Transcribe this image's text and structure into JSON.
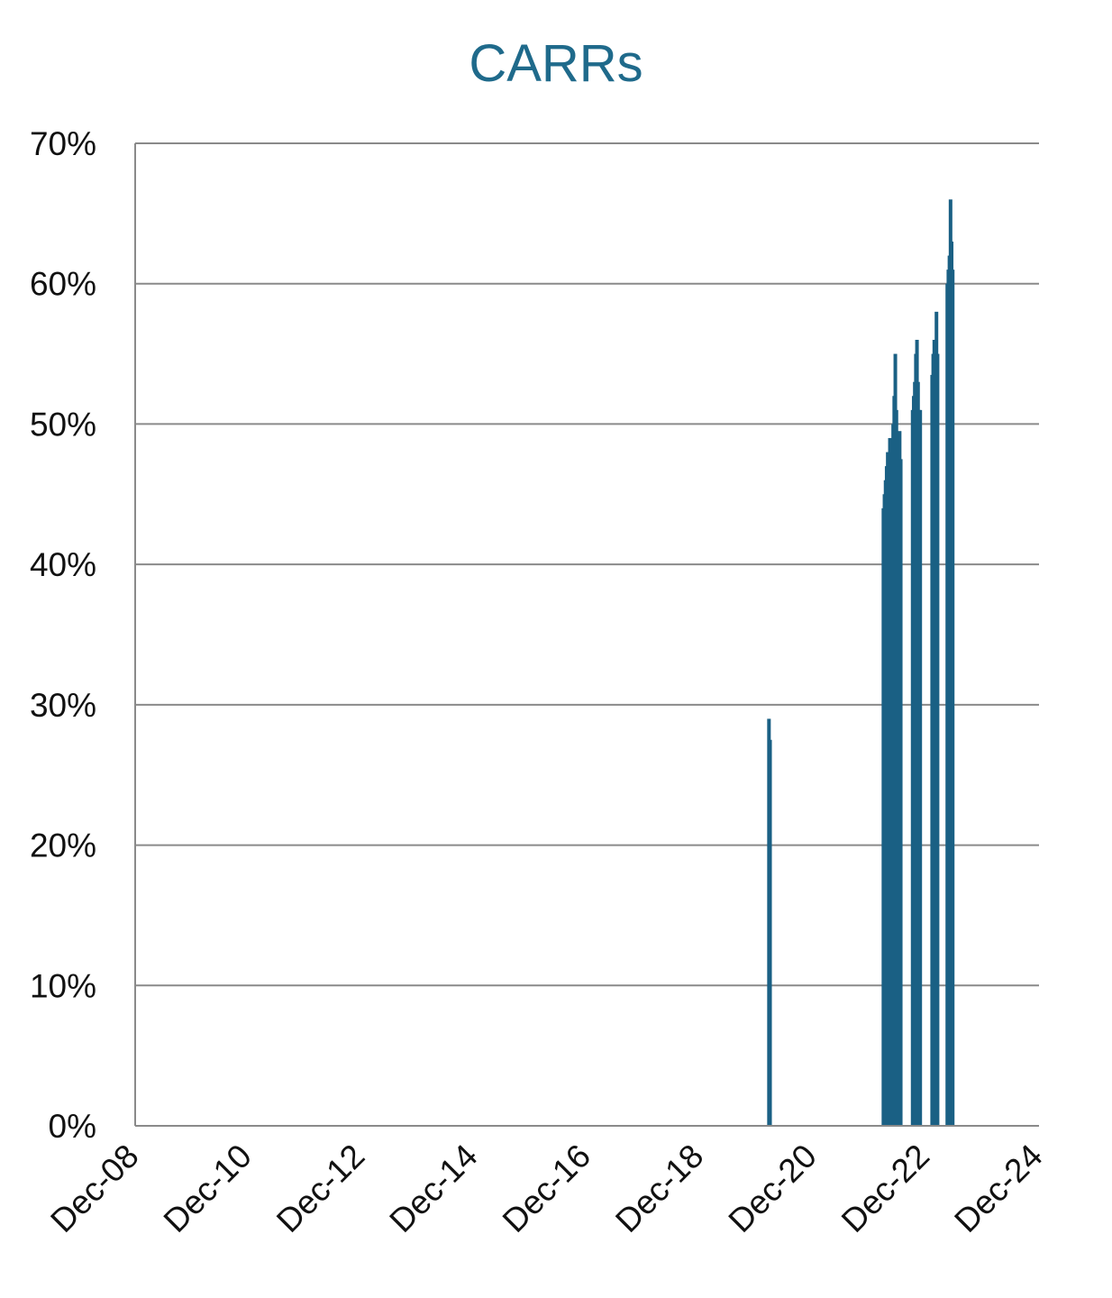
{
  "colors": {
    "series": "#1a6084",
    "title": "#1f6a8b",
    "grid": "#8a8a8a",
    "text": "#111111",
    "background": "#ffffff"
  },
  "chart_data": {
    "type": "bar",
    "title": "CARRs",
    "xlabel": "",
    "ylabel": "",
    "ylim": [
      0,
      0.7
    ],
    "y_ticks": [
      {
        "value": 0.0,
        "label": "0%"
      },
      {
        "value": 0.1,
        "label": "10%"
      },
      {
        "value": 0.2,
        "label": "20%"
      },
      {
        "value": 0.3,
        "label": "30%"
      },
      {
        "value": 0.4,
        "label": "40%"
      },
      {
        "value": 0.5,
        "label": "50%"
      },
      {
        "value": 0.6,
        "label": "60%"
      },
      {
        "value": 0.7,
        "label": "70%"
      }
    ],
    "xlim": [
      "2008-12-01",
      "2024-12-01"
    ],
    "x_ticks": [
      {
        "value": "2008-12-01",
        "label": "Dec-08"
      },
      {
        "value": "2010-12-01",
        "label": "Dec-10"
      },
      {
        "value": "2012-12-01",
        "label": "Dec-12"
      },
      {
        "value": "2014-12-01",
        "label": "Dec-14"
      },
      {
        "value": "2016-12-01",
        "label": "Dec-16"
      },
      {
        "value": "2018-12-01",
        "label": "Dec-18"
      },
      {
        "value": "2020-12-01",
        "label": "Dec-20"
      },
      {
        "value": "2022-12-01",
        "label": "Dec-22"
      },
      {
        "value": "2024-12-01",
        "label": "Dec-24"
      }
    ],
    "grid": true,
    "legend": "none",
    "series": [
      {
        "points": [
          {
            "x": "2020-02-20",
            "y": 0.29
          },
          {
            "x": "2020-02-27",
            "y": 0.275
          },
          {
            "x": "2022-03-01",
            "y": 0.44
          },
          {
            "x": "2022-03-08",
            "y": 0.45
          },
          {
            "x": "2022-03-15",
            "y": 0.46
          },
          {
            "x": "2022-03-22",
            "y": 0.47
          },
          {
            "x": "2022-03-29",
            "y": 0.48
          },
          {
            "x": "2022-04-05",
            "y": 0.465
          },
          {
            "x": "2022-04-12",
            "y": 0.49
          },
          {
            "x": "2022-04-19",
            "y": 0.47
          },
          {
            "x": "2022-04-26",
            "y": 0.48
          },
          {
            "x": "2022-05-03",
            "y": 0.5
          },
          {
            "x": "2022-05-10",
            "y": 0.52
          },
          {
            "x": "2022-05-17",
            "y": 0.55
          },
          {
            "x": "2022-05-24",
            "y": 0.51
          },
          {
            "x": "2022-05-31",
            "y": 0.49
          },
          {
            "x": "2022-06-07",
            "y": 0.47
          },
          {
            "x": "2022-06-14",
            "y": 0.495
          },
          {
            "x": "2022-06-21",
            "y": 0.475
          },
          {
            "x": "2022-09-06",
            "y": 0.51
          },
          {
            "x": "2022-09-13",
            "y": 0.52
          },
          {
            "x": "2022-09-20",
            "y": 0.53
          },
          {
            "x": "2022-09-27",
            "y": 0.55
          },
          {
            "x": "2022-10-04",
            "y": 0.56
          },
          {
            "x": "2022-10-11",
            "y": 0.53
          },
          {
            "x": "2022-10-18",
            "y": 0.51
          },
          {
            "x": "2022-10-25",
            "y": 0.51
          },
          {
            "x": "2023-01-10",
            "y": 0.535
          },
          {
            "x": "2023-01-17",
            "y": 0.55
          },
          {
            "x": "2023-01-24",
            "y": 0.56
          },
          {
            "x": "2023-02-07",
            "y": 0.58
          },
          {
            "x": "2023-02-14",
            "y": 0.55
          },
          {
            "x": "2023-04-18",
            "y": 0.6
          },
          {
            "x": "2023-04-25",
            "y": 0.61
          },
          {
            "x": "2023-05-02",
            "y": 0.62
          },
          {
            "x": "2023-05-09",
            "y": 0.66
          },
          {
            "x": "2023-05-16",
            "y": 0.63
          },
          {
            "x": "2023-05-23",
            "y": 0.61
          }
        ]
      }
    ]
  }
}
